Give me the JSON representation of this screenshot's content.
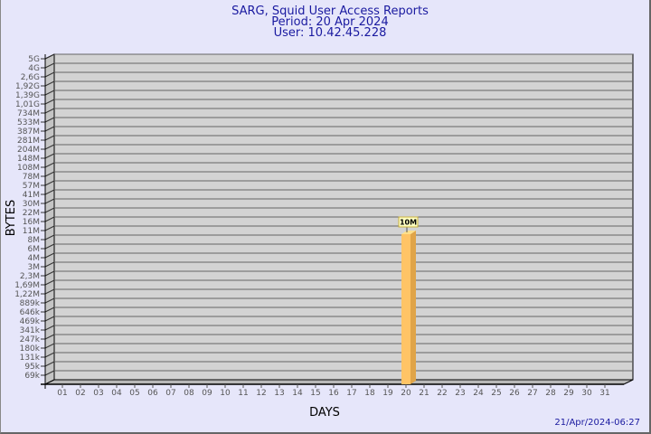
{
  "title_lines": [
    "SARG, Squid User Access Reports",
    "Period: 20 Apr 2024",
    "User: 10.42.45.228"
  ],
  "footer_timestamp": "21/Apr/2024-06:27",
  "colors": {
    "background": "#e6e6fa",
    "plot": "#d3d3d3",
    "bar": "#ffc466",
    "title": "#1a1aa0"
  },
  "chart_data": {
    "type": "bar",
    "xlabel": "DAYS",
    "ylabel": "BYTES",
    "y_scale": "log",
    "y_ticks": [
      "5G",
      "4G",
      "2,6G",
      "1,92G",
      "1,39G",
      "1,01G",
      "734M",
      "533M",
      "387M",
      "281M",
      "204M",
      "148M",
      "108M",
      "78M",
      "57M",
      "41M",
      "30M",
      "22M",
      "16M",
      "11M",
      "8M",
      "6M",
      "4M",
      "3M",
      "2,3M",
      "1,69M",
      "1,22M",
      "889k",
      "646k",
      "469k",
      "341k",
      "247k",
      "180k",
      "131k",
      "95k",
      "69k"
    ],
    "categories": [
      "01",
      "02",
      "03",
      "04",
      "05",
      "06",
      "07",
      "08",
      "09",
      "10",
      "11",
      "12",
      "13",
      "14",
      "15",
      "16",
      "17",
      "18",
      "19",
      "20",
      "21",
      "22",
      "23",
      "24",
      "25",
      "26",
      "27",
      "28",
      "29",
      "30",
      "31"
    ],
    "bars": [
      {
        "day": "20",
        "value_label": "10M",
        "y_tick_level": "11M"
      }
    ],
    "grid": true
  }
}
